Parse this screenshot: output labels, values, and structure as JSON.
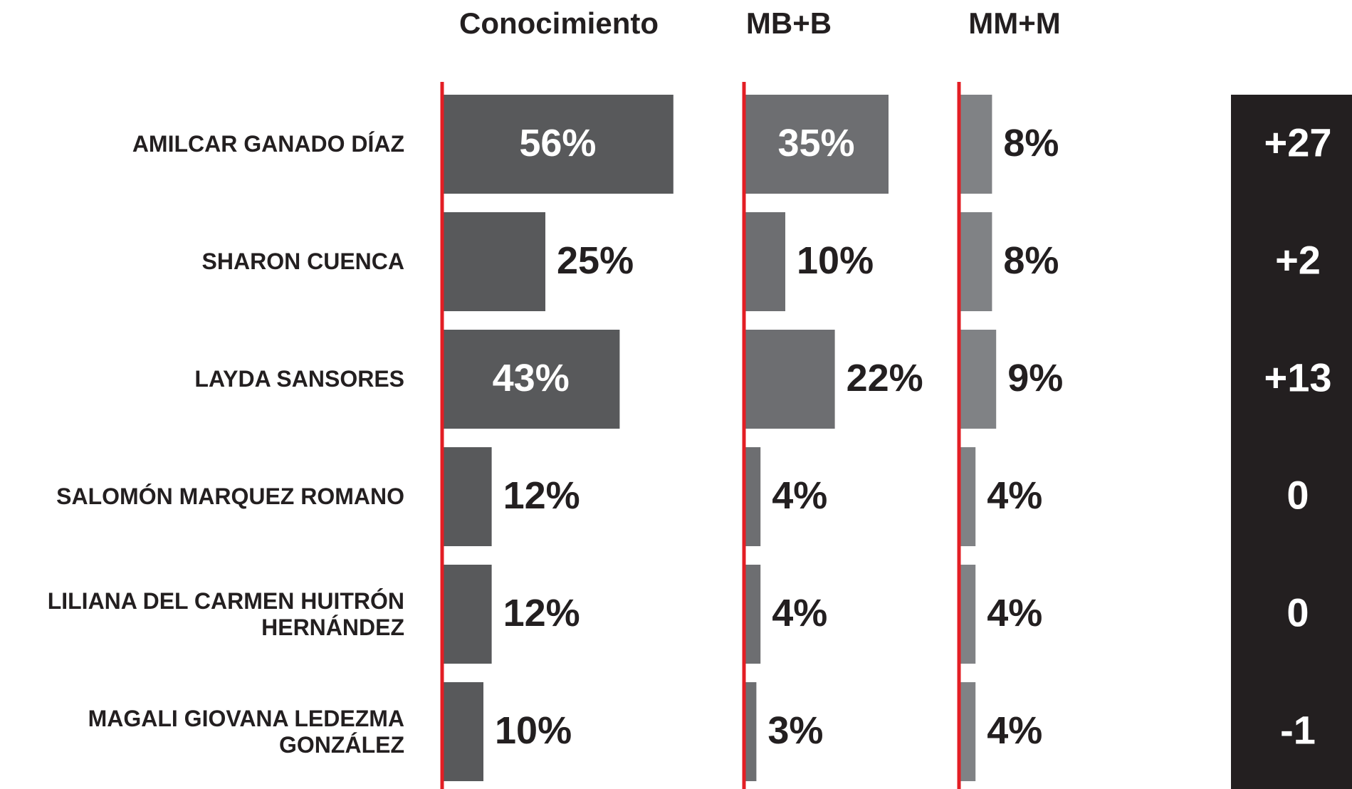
{
  "chart_data": {
    "type": "bar",
    "orientation": "horizontal",
    "categories": [
      "AMILCAR GANADO DÍAZ",
      "SHARON CUENCA",
      "LAYDA SANSORES",
      "SALOMÓN MARQUEZ ROMANO",
      "LILIANA DEL CARMEN HUITRÓN HERNÁNDEZ",
      "MAGALI GIOVANA LEDEZMA GONZÁLEZ"
    ],
    "series": [
      {
        "name": "Conocimiento",
        "color": "#58595b",
        "values": [
          56,
          25,
          43,
          12,
          12,
          10
        ],
        "value_labels": [
          "56%",
          "25%",
          "43%",
          "12%",
          "12%",
          "10%"
        ]
      },
      {
        "name": "MB+B",
        "color": "#6d6e71",
        "values": [
          35,
          10,
          22,
          4,
          4,
          3
        ],
        "value_labels": [
          "35%",
          "10%",
          "22%",
          "4%",
          "4%",
          "3%"
        ]
      },
      {
        "name": "MM+M",
        "color": "#808285",
        "values": [
          8,
          8,
          9,
          4,
          4,
          4
        ],
        "value_labels": [
          "8%",
          "8%",
          "9%",
          "4%",
          "4%",
          "4%"
        ]
      }
    ],
    "net": {
      "color": "#231f20",
      "values": [
        27,
        2,
        13,
        0,
        0,
        -1
      ],
      "value_labels": [
        "+27",
        "+2",
        "+13",
        "0",
        "0",
        "-1"
      ]
    }
  }
}
